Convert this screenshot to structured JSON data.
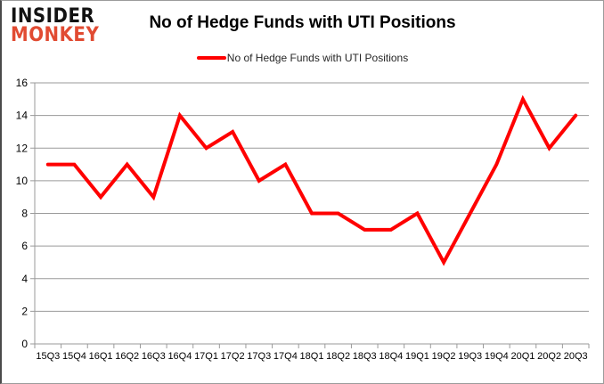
{
  "header": {
    "logo_line1": "INSIDER",
    "logo_line2": "MONKEY",
    "title": "No of Hedge Funds with UTI Positions"
  },
  "legend": {
    "label": "No of Hedge Funds with UTI Positions"
  },
  "colors": {
    "line": "#FF0000",
    "logo_accent": "#E14B32",
    "grid": "#9A9A9A",
    "axis_text": "#000000"
  },
  "chart_data": {
    "type": "line",
    "title": "No of Hedge Funds with UTI Positions",
    "categories": [
      "15Q3",
      "15Q4",
      "16Q1",
      "16Q2",
      "16Q3",
      "16Q4",
      "17Q1",
      "17Q2",
      "17Q3",
      "17Q4",
      "18Q1",
      "18Q2",
      "18Q3",
      "18Q4",
      "19Q1",
      "19Q2",
      "19Q3",
      "19Q4",
      "20Q1",
      "20Q2",
      "20Q3"
    ],
    "series": [
      {
        "name": "No of Hedge Funds with UTI Positions",
        "values": [
          11,
          11,
          9,
          11,
          9,
          14,
          12,
          13,
          10,
          11,
          8,
          8,
          7,
          7,
          8,
          5,
          8,
          11,
          15,
          12,
          14
        ]
      }
    ],
    "xlabel": "",
    "ylabel": "",
    "ylim": [
      0,
      16
    ],
    "y_ticks": [
      0,
      2,
      4,
      6,
      8,
      10,
      12,
      14,
      16
    ],
    "grid": true,
    "legend_position": "top-center"
  }
}
